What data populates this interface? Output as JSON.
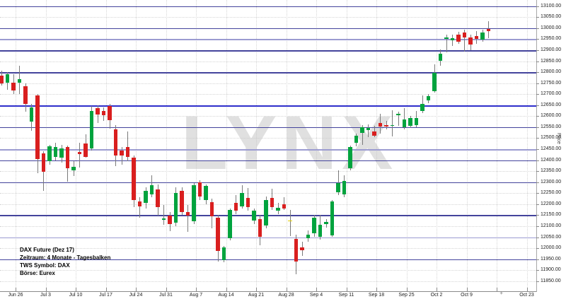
{
  "watermark": "LYNX",
  "info_box": {
    "line1": "DAX Future (Dez 17)",
    "line2": "Zeitraum: 4 Monate - Tagesbalken",
    "line3": "TWS Symbol: DAX",
    "line4": "Börse: Eurex"
  },
  "y_axis": {
    "title": "Price",
    "min": 11850,
    "max": 13100,
    "step": 50,
    "label_format": "0.00"
  },
  "x_axis": {
    "labels": [
      {
        "text": "Jun 26",
        "week": 0
      },
      {
        "text": "Jul 3",
        "week": 1
      },
      {
        "text": "Jul 10",
        "week": 2
      },
      {
        "text": "Jul 17",
        "week": 3
      },
      {
        "text": "Jul 24",
        "week": 4
      },
      {
        "text": "Jul 31",
        "week": 5
      },
      {
        "text": "Aug 7",
        "week": 6
      },
      {
        "text": "Aug 14",
        "week": 7
      },
      {
        "text": "Aug 21",
        "week": 8
      },
      {
        "text": "Aug 28",
        "week": 9
      },
      {
        "text": "Sep 4",
        "week": 10
      },
      {
        "text": "Sep 11",
        "week": 11
      },
      {
        "text": "Sep 18",
        "week": 12
      },
      {
        "text": "Sep 25",
        "week": 13
      },
      {
        "text": "Oct 2",
        "week": 14
      },
      {
        "text": "Oct 9",
        "week": 15
      },
      {
        "text": "Oct 23",
        "week": 17
      }
    ],
    "plus_marker": "+",
    "plus_marker_week": 16.15
  },
  "colors": {
    "up": "#00A33E",
    "down": "#D91F1F",
    "special": "#E3CF00",
    "wick": "#7a7a7a",
    "hline_normal": "#44449C",
    "hline_light": "#9B9BD1",
    "hline_bright": "#2E2ECB"
  },
  "chart_data": {
    "type": "candlestick",
    "title": "DAX Future (Dez 17)",
    "subtitle": "Zeitraum: 4 Monate - Tagesbalken",
    "exchange": "Eurex",
    "ylabel": "Price",
    "ylim": [
      11850,
      13100
    ],
    "grid": "dotted 50-point horizontal, weekly vertical",
    "legend_position": "none",
    "candle_fields": [
      "date",
      "open",
      "high",
      "low",
      "close"
    ],
    "candles": [
      [
        "Jun 22",
        12785,
        12808,
        12740,
        12748
      ],
      [
        "Jun 23",
        12753,
        12800,
        12720,
        12790
      ],
      [
        "Jun 26",
        12751,
        12792,
        12700,
        12716
      ],
      [
        "Jun 27",
        12753,
        12830,
        12700,
        12769
      ],
      [
        "Jun 28",
        12737,
        12750,
        12619,
        12656
      ],
      [
        "Jun 29",
        12575,
        12655,
        12535,
        12640
      ],
      [
        "Jun 30",
        12694,
        12700,
        12340,
        12404
      ],
      [
        "Jul 3",
        12432,
        12440,
        12260,
        12346
      ],
      [
        "Jul 4",
        12394,
        12470,
        12380,
        12464
      ],
      [
        "Jul 5",
        12416,
        12480,
        12400,
        12459
      ],
      [
        "Jul 6",
        12410,
        12470,
        12390,
        12453
      ],
      [
        "Jul 7",
        12459,
        12465,
        12302,
        12362
      ],
      [
        "Jul 10",
        12355,
        12395,
        12327,
        12370
      ],
      [
        "Jul 11",
        12437,
        12480,
        12367,
        12427
      ],
      [
        "Jul 12",
        12475,
        12518,
        12410,
        12416
      ],
      [
        "Jul 13",
        12453,
        12647,
        12445,
        12624
      ],
      [
        "Jul 14",
        12637,
        12650,
        12570,
        12608
      ],
      [
        "Jul 17",
        12624,
        12640,
        12580,
        12603
      ],
      [
        "Jul 18",
        12646,
        12655,
        12544,
        12582
      ],
      [
        "Jul 19",
        12539,
        12560,
        12373,
        12421
      ],
      [
        "Jul 20",
        12442,
        12460,
        12380,
        12421
      ],
      [
        "Jul 21",
        12460,
        12530,
        12395,
        12415
      ],
      [
        "Jul 24",
        12410,
        12420,
        12186,
        12218
      ],
      [
        "Jul 25",
        12212,
        12230,
        12137,
        12191
      ],
      [
        "Jul 26",
        12206,
        12275,
        12180,
        12260
      ],
      [
        "Jul 27",
        12244,
        12330,
        12230,
        12287
      ],
      [
        "Jul 28",
        12266,
        12290,
        12148,
        12186
      ],
      [
        "Jul 31",
        12128,
        12196,
        12105,
        12135
      ],
      [
        "Aug 1",
        12148,
        12165,
        12078,
        12110
      ],
      [
        "Aug 2",
        12116,
        12277,
        12100,
        12250
      ],
      [
        "Aug 3",
        12260,
        12275,
        12150,
        12164
      ],
      [
        "Aug 4",
        12164,
        12196,
        12073,
        12148
      ],
      [
        "Aug 7",
        12121,
        12295,
        12110,
        12287
      ],
      [
        "Aug 8",
        12298,
        12310,
        12220,
        12234
      ],
      [
        "Aug 9",
        12218,
        12290,
        12200,
        12282
      ],
      [
        "Aug 10",
        12210,
        12225,
        12089,
        12145
      ],
      [
        "Aug 11",
        12137,
        12150,
        11939,
        11987
      ],
      [
        "Aug 14",
        11944,
        12010,
        11935,
        12003
      ],
      [
        "Aug 15",
        12046,
        12180,
        12035,
        12175
      ],
      [
        "Aug 16",
        12207,
        12240,
        12155,
        12169
      ],
      [
        "Aug 17",
        12191,
        12287,
        12180,
        12250
      ],
      [
        "Aug 18",
        12229,
        12272,
        12170,
        12186
      ],
      [
        "Aug 21",
        12126,
        12180,
        12110,
        12169
      ],
      [
        "Aug 22",
        12132,
        12150,
        12013,
        12051
      ],
      [
        "Aug 23",
        12103,
        12235,
        12090,
        12220
      ],
      [
        "Aug 24",
        12228,
        12270,
        12175,
        12185
      ],
      [
        "Aug 25",
        12170,
        12205,
        12155,
        12183
      ],
      [
        "Aug 28",
        12201,
        12230,
        12175,
        12180
      ],
      [
        "Aug 29",
        12126,
        12175,
        12055,
        12126
      ],
      [
        "Aug 30",
        12041,
        12060,
        11880,
        11939
      ],
      [
        "Aug 31",
        12003,
        12030,
        11965,
        11990
      ],
      [
        "Sep 1",
        12046,
        12080,
        12030,
        12062
      ],
      [
        "Sep 4",
        12068,
        12150,
        12050,
        12137
      ],
      [
        "Sep 5",
        12051,
        12150,
        12038,
        12105
      ],
      [
        "Sep 6",
        12110,
        12132,
        12094,
        12118
      ],
      [
        "Sep 7",
        12058,
        12220,
        12050,
        12212
      ],
      [
        "Sep 8",
        12254,
        12355,
        12240,
        12297
      ],
      [
        "Sep 11",
        12244,
        12330,
        12230,
        12307
      ],
      [
        "Sep 12",
        12362,
        12465,
        12355,
        12459
      ],
      [
        "Sep 13",
        12480,
        12520,
        12463,
        12512
      ],
      [
        "Sep 14",
        12525,
        12560,
        12470,
        12551
      ],
      [
        "Sep 15",
        12538,
        12562,
        12505,
        12548
      ],
      [
        "Sep 18",
        12530,
        12555,
        12505,
        12512
      ],
      [
        "Sep 19",
        12570,
        12610,
        12520,
        12554
      ],
      [
        "Sep 20",
        12560,
        12580,
        12540,
        12552
      ],
      [
        "Sep 21",
        12556,
        12626,
        12508,
        12560
      ],
      [
        "Sep 22",
        12605,
        12620,
        12555,
        12610
      ],
      [
        "Sep 25",
        12549,
        12637,
        12540,
        12586
      ],
      [
        "Sep 26",
        12555,
        12600,
        12545,
        12590
      ],
      [
        "Sep 27",
        12560,
        12625,
        12550,
        12592
      ],
      [
        "Sep 28",
        12624,
        12695,
        12615,
        12656
      ],
      [
        "Sep 29",
        12672,
        12700,
        12660,
        12690
      ],
      [
        "Oct 2",
        12713,
        12836,
        12708,
        12798
      ],
      [
        "Oct 3",
        12852,
        12902,
        12830,
        12884
      ],
      [
        "Oct 4",
        12950,
        12970,
        12890,
        12958
      ],
      [
        "Oct 5",
        12945,
        12972,
        12920,
        12955
      ],
      [
        "Oct 6",
        12970,
        12982,
        12928,
        12938
      ],
      [
        "Oct 9",
        12981,
        12992,
        12895,
        12959
      ],
      [
        "Oct 10",
        12959,
        12972,
        12900,
        12927
      ],
      [
        "Oct 11",
        12965,
        12985,
        12930,
        12950
      ],
      [
        "Oct 12",
        12949,
        12992,
        12938,
        12981
      ],
      [
        "Oct 13",
        12995,
        13032,
        12955,
        12988
      ]
    ],
    "special_candle": {
      "index": 48,
      "color_name": "yellow"
    },
    "levels": [
      {
        "price": 13100,
        "style": "normal"
      },
      {
        "price": 13000,
        "style": "normal"
      },
      {
        "price": 12950,
        "style": "light"
      },
      {
        "price": 12900,
        "style": "normal"
      },
      {
        "price": 12800,
        "style": "normal"
      },
      {
        "price": 12650,
        "style": "bright"
      },
      {
        "price": 12550,
        "style": "normal"
      },
      {
        "price": 12450,
        "style": "light"
      },
      {
        "price": 12400,
        "style": "normal"
      },
      {
        "price": 12300,
        "style": "normal"
      },
      {
        "price": 12150,
        "style": "normal"
      },
      {
        "price": 12050,
        "style": "light"
      },
      {
        "price": 11950,
        "style": "normal"
      }
    ]
  }
}
